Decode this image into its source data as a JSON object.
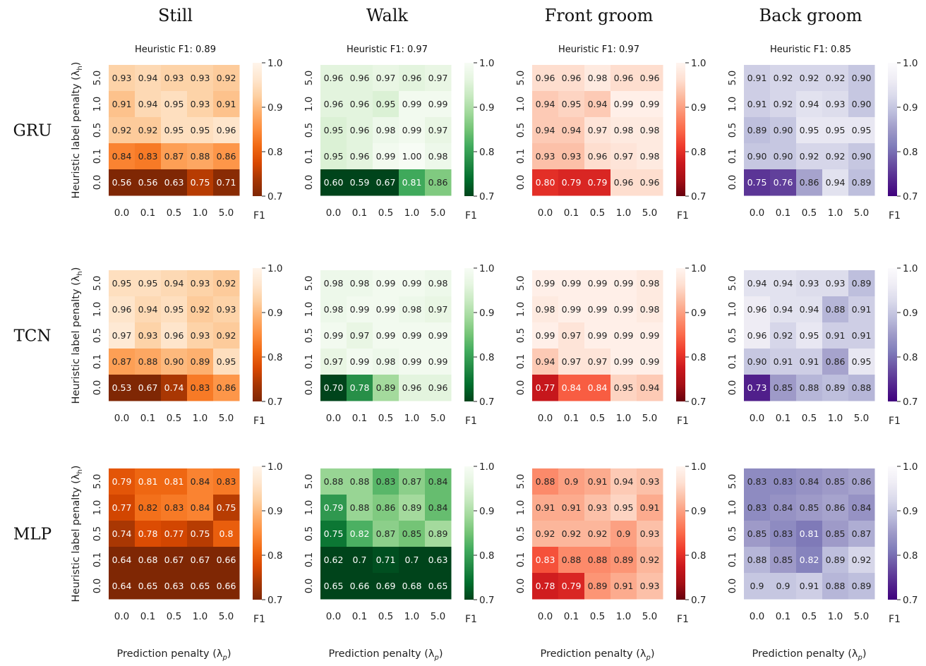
{
  "chart_data": {
    "type": "heatmap",
    "columns": [
      {
        "title": "Still",
        "colorscale": "Oranges_r",
        "heuristic_f1": "Heuristic F1: 0.89"
      },
      {
        "title": "Walk",
        "colorscale": "Greens_r",
        "heuristic_f1": "Heuristic F1: 0.97"
      },
      {
        "title": "Front groom",
        "colorscale": "Reds_r",
        "heuristic_f1": "Heuristic F1: 0.97"
      },
      {
        "title": "Back groom",
        "colorscale": "Purples_r",
        "heuristic_f1": "Heuristic F1: 0.85"
      }
    ],
    "rows": [
      "GRU",
      "TCN",
      "MLP"
    ],
    "x_ticks": [
      "0.0",
      "0.1",
      "0.5",
      "1.0",
      "5.0"
    ],
    "y_ticks_top_to_bottom": [
      "5.0",
      "1.0",
      "0.5",
      "0.1",
      "0.0"
    ],
    "xlabel": "Prediction penalty (λ_p)",
    "ylabel": "Heuristic label penalty (λ_h)",
    "colorbar": {
      "label": "F1",
      "ticks": [
        "1.0",
        "0.9",
        "0.8",
        "0.7"
      ],
      "vmin": 0.7,
      "vmax": 1.0
    },
    "grids": {
      "GRU": {
        "Still": [
          [
            "0.93",
            "0.94",
            "0.93",
            "0.93",
            "0.92"
          ],
          [
            "0.91",
            "0.94",
            "0.95",
            "0.93",
            "0.91"
          ],
          [
            "0.92",
            "0.92",
            "0.95",
            "0.95",
            "0.96"
          ],
          [
            "0.84",
            "0.83",
            "0.87",
            "0.88",
            "0.86"
          ],
          [
            "0.56",
            "0.56",
            "0.63",
            "0.75",
            "0.71"
          ]
        ],
        "Walk": [
          [
            "0.96",
            "0.96",
            "0.97",
            "0.96",
            "0.97"
          ],
          [
            "0.96",
            "0.96",
            "0.95",
            "0.99",
            "0.99"
          ],
          [
            "0.95",
            "0.96",
            "0.98",
            "0.99",
            "0.97"
          ],
          [
            "0.95",
            "0.96",
            "0.99",
            "1.00",
            "0.98"
          ],
          [
            "0.60",
            "0.59",
            "0.67",
            "0.81",
            "0.86"
          ]
        ],
        "Front groom": [
          [
            "0.96",
            "0.96",
            "0.98",
            "0.96",
            "0.96"
          ],
          [
            "0.94",
            "0.95",
            "0.94",
            "0.99",
            "0.99"
          ],
          [
            "0.94",
            "0.94",
            "0.97",
            "0.98",
            "0.98"
          ],
          [
            "0.93",
            "0.93",
            "0.96",
            "0.97",
            "0.98"
          ],
          [
            "0.80",
            "0.79",
            "0.79",
            "0.96",
            "0.96"
          ]
        ],
        "Back groom": [
          [
            "0.91",
            "0.92",
            "0.92",
            "0.92",
            "0.90"
          ],
          [
            "0.91",
            "0.92",
            "0.94",
            "0.93",
            "0.90"
          ],
          [
            "0.89",
            "0.90",
            "0.95",
            "0.95",
            "0.95"
          ],
          [
            "0.90",
            "0.90",
            "0.92",
            "0.92",
            "0.90"
          ],
          [
            "0.75",
            "0.76",
            "0.86",
            "0.94",
            "0.89"
          ]
        ]
      },
      "TCN": {
        "Still": [
          [
            "0.95",
            "0.95",
            "0.94",
            "0.93",
            "0.92"
          ],
          [
            "0.96",
            "0.94",
            "0.95",
            "0.92",
            "0.93"
          ],
          [
            "0.97",
            "0.93",
            "0.96",
            "0.93",
            "0.92"
          ],
          [
            "0.87",
            "0.88",
            "0.90",
            "0.89",
            "0.95"
          ],
          [
            "0.53",
            "0.67",
            "0.74",
            "0.83",
            "0.86"
          ]
        ],
        "Walk": [
          [
            "0.98",
            "0.98",
            "0.99",
            "0.99",
            "0.98"
          ],
          [
            "0.98",
            "0.99",
            "0.99",
            "0.98",
            "0.97"
          ],
          [
            "0.99",
            "0.97",
            "0.99",
            "0.99",
            "0.99"
          ],
          [
            "0.97",
            "0.99",
            "0.98",
            "0.99",
            "0.99"
          ],
          [
            "0.70",
            "0.78",
            "0.89",
            "0.96",
            "0.96"
          ]
        ],
        "Front groom": [
          [
            "0.99",
            "0.99",
            "0.99",
            "0.99",
            "0.98"
          ],
          [
            "0.98",
            "0.99",
            "0.99",
            "0.99",
            "0.98"
          ],
          [
            "0.99",
            "0.97",
            "0.99",
            "0.99",
            "0.99"
          ],
          [
            "0.94",
            "0.97",
            "0.97",
            "0.99",
            "0.99"
          ],
          [
            "0.77",
            "0.84",
            "0.84",
            "0.95",
            "0.94"
          ]
        ],
        "Back groom": [
          [
            "0.94",
            "0.94",
            "0.93",
            "0.93",
            "0.89"
          ],
          [
            "0.96",
            "0.94",
            "0.94",
            "0.88",
            "0.91"
          ],
          [
            "0.96",
            "0.92",
            "0.95",
            "0.91",
            "0.91"
          ],
          [
            "0.90",
            "0.91",
            "0.91",
            "0.86",
            "0.95"
          ],
          [
            "0.73",
            "0.85",
            "0.88",
            "0.89",
            "0.88"
          ]
        ]
      },
      "MLP": {
        "Still": [
          [
            "0.79",
            "0.81",
            "0.81",
            "0.84",
            "0.83"
          ],
          [
            "0.77",
            "0.82",
            "0.83",
            "0.84",
            "0.75"
          ],
          [
            "0.74",
            "0.78",
            "0.77",
            "0.75",
            "0.8"
          ],
          [
            "0.64",
            "0.68",
            "0.67",
            "0.67",
            "0.66"
          ],
          [
            "0.64",
            "0.65",
            "0.63",
            "0.65",
            "0.66"
          ]
        ],
        "Walk": [
          [
            "0.88",
            "0.88",
            "0.83",
            "0.87",
            "0.84"
          ],
          [
            "0.79",
            "0.88",
            "0.86",
            "0.89",
            "0.84"
          ],
          [
            "0.75",
            "0.82",
            "0.87",
            "0.85",
            "0.89"
          ],
          [
            "0.62",
            "0.7",
            "0.71",
            "0.7",
            "0.63"
          ],
          [
            "0.65",
            "0.66",
            "0.69",
            "0.68",
            "0.65"
          ]
        ],
        "Front groom": [
          [
            "0.88",
            "0.9",
            "0.91",
            "0.94",
            "0.93"
          ],
          [
            "0.91",
            "0.91",
            "0.93",
            "0.95",
            "0.91"
          ],
          [
            "0.92",
            "0.92",
            "0.92",
            "0.9",
            "0.93"
          ],
          [
            "0.83",
            "0.88",
            "0.88",
            "0.89",
            "0.92"
          ],
          [
            "0.78",
            "0.79",
            "0.89",
            "0.91",
            "0.93"
          ]
        ],
        "Back groom": [
          [
            "0.83",
            "0.83",
            "0.84",
            "0.85",
            "0.86"
          ],
          [
            "0.83",
            "0.84",
            "0.85",
            "0.86",
            "0.84"
          ],
          [
            "0.85",
            "0.83",
            "0.81",
            "0.85",
            "0.87"
          ],
          [
            "0.88",
            "0.85",
            "0.82",
            "0.89",
            "0.92"
          ],
          [
            "0.9",
            "0.9",
            "0.91",
            "0.88",
            "0.89"
          ]
        ]
      }
    },
    "colors": {
      "Oranges_r": [
        "#7f2704",
        "#a63603",
        "#d94801",
        "#f16913",
        "#fd8d3c",
        "#fdae6b",
        "#fdd0a2",
        "#fee6ce",
        "#fff5eb"
      ],
      "Greens_r": [
        "#00441b",
        "#006d2c",
        "#238b45",
        "#41ab5d",
        "#74c476",
        "#a1d99b",
        "#c7e9c0",
        "#e5f5e0",
        "#f7fcf5"
      ],
      "Reds_r": [
        "#67000d",
        "#a50f15",
        "#cb181d",
        "#ef3b2c",
        "#fb6a4a",
        "#fc9272",
        "#fcbba1",
        "#fee0d2",
        "#fff5f0"
      ],
      "Purples_r": [
        "#3f007d",
        "#54278f",
        "#6a51a3",
        "#807dba",
        "#9e9ac8",
        "#bcbddc",
        "#dadaeb",
        "#efedf5",
        "#fcfbfd"
      ]
    }
  }
}
